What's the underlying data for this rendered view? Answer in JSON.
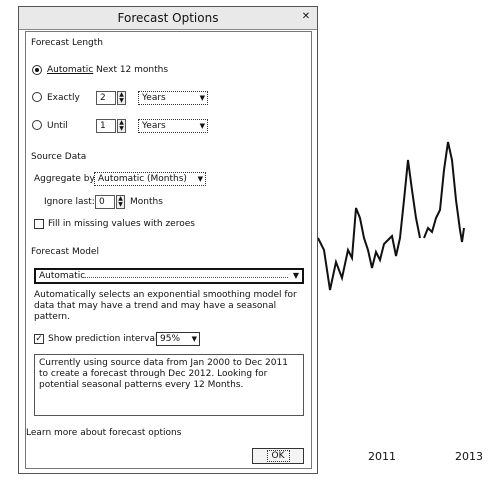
{
  "background_chart": {
    "x_labels": [
      "2011",
      "2013"
    ]
  },
  "dialog": {
    "title": "Forecast Options",
    "forecast_length": {
      "heading": "Forecast Length",
      "automatic_label": "Automatic",
      "automatic_value": "Next 12 months",
      "exactly_label": "Exactly",
      "exactly_value": "2",
      "exactly_unit": "Years",
      "until_label": "Until",
      "until_value": "1",
      "until_unit": "Years",
      "selected": "Automatic"
    },
    "source_data": {
      "heading": "Source Data",
      "aggregate_label": "Aggregate by:",
      "aggregate_value": "Automatic (Months)",
      "ignore_label": "Ignore last:",
      "ignore_value": "0",
      "ignore_unit": "Months",
      "fill_label": "Fill in missing values with zeroes",
      "fill_checked": false
    },
    "forecast_model": {
      "heading": "Forecast Model",
      "value": "Automatic",
      "description": "Automatically selects an exponential smoothing model for data that may have a trend and may have a seasonal pattern."
    },
    "prediction": {
      "label": "Show prediction intervals",
      "checked": true,
      "value": "95%"
    },
    "message": "Currently using source data from Jan 2000 to Dec 2011 to create a forecast through Dec 2012. Looking for potential seasonal patterns every 12 Months.",
    "learn_more": "Learn more about forecast options",
    "ok_label": "OK"
  }
}
